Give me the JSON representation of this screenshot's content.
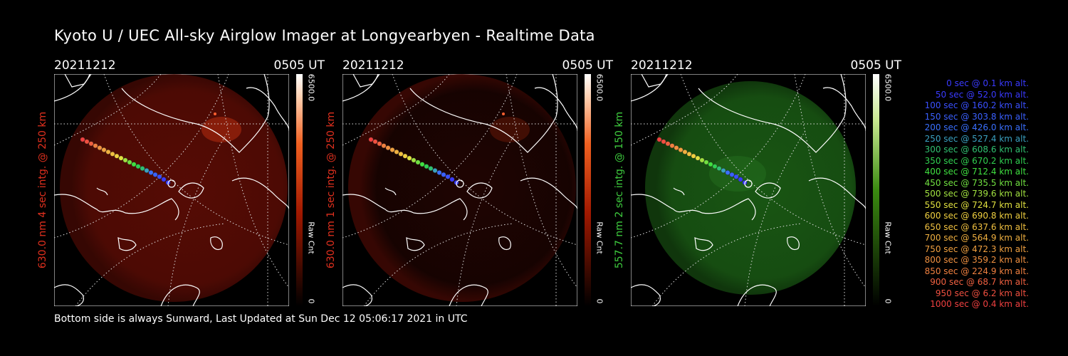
{
  "page": {
    "title": "Kyoto U / UEC All-sky Airglow Imager at Longyearbyen - Realtime Data",
    "footer": "Bottom side is always Sunward, Last Updated at Sun Dec 12 05:06:17 2021 in UTC"
  },
  "panels": [
    {
      "date": "20211212",
      "time": "0505 UT",
      "side_label": "630.0 nm 4 sec intg. @ 250 km",
      "side_color": "#e0301e",
      "cb_max": "6500.0",
      "cb_min": "0",
      "cb_title": "Raw Cnt",
      "colormap": "red"
    },
    {
      "date": "20211212",
      "time": "0505 UT",
      "side_label": "630.0 nm 1 sec intg. @ 250 km",
      "side_color": "#e0301e",
      "cb_max": "6500.0",
      "cb_min": "0",
      "cb_title": "Raw Cnt",
      "colormap": "red"
    },
    {
      "date": "20211212",
      "time": "0505 UT",
      "side_label": "557.7 nm 2 sec intg. @ 150 km",
      "side_color": "#3ecc3e",
      "cb_max": "6500.0",
      "cb_min": "0",
      "cb_title": "Raw Cnt",
      "colormap": "green"
    }
  ],
  "legend": [
    {
      "text": "0 sec @    0.1 km alt.",
      "color": "#3a3aff"
    },
    {
      "text": "50 sec @   52.0 km alt.",
      "color": "#3a3aff"
    },
    {
      "text": "100 sec @  160.2 km alt.",
      "color": "#3a50ff"
    },
    {
      "text": "150 sec @  303.8 km alt.",
      "color": "#3a60ff"
    },
    {
      "text": "200 sec @  426.0 km alt.",
      "color": "#3a70ff"
    },
    {
      "text": "250 sec @  527.4 km alt.",
      "color": "#3aa0c0"
    },
    {
      "text": "300 sec @  608.6 km alt.",
      "color": "#30c070"
    },
    {
      "text": "350 sec @  670.2 km alt.",
      "color": "#30d050"
    },
    {
      "text": "400 sec @  712.4 km alt.",
      "color": "#40e040"
    },
    {
      "text": "450 sec @  735.5 km alt.",
      "color": "#70e040"
    },
    {
      "text": "500 sec @  739.6 km alt.",
      "color": "#a0e040"
    },
    {
      "text": "550 sec @  724.7 km alt.",
      "color": "#e0e040"
    },
    {
      "text": "600 sec @  690.8 km alt.",
      "color": "#f0d040"
    },
    {
      "text": "650 sec @  637.6 km alt.",
      "color": "#f0c040"
    },
    {
      "text": "700 sec @  564.9 km alt.",
      "color": "#f0b040"
    },
    {
      "text": "750 sec @  472.3 km alt.",
      "color": "#f0a040"
    },
    {
      "text": "800 sec @  359.2 km alt.",
      "color": "#f09040"
    },
    {
      "text": "850 sec @  224.9 km alt.",
      "color": "#f08040"
    },
    {
      "text": "900 sec @   68.7 km alt.",
      "color": "#f06040"
    },
    {
      "text": "950 sec @    6.2 km alt.",
      "color": "#f05040"
    },
    {
      "text": "1000 sec @    0.4 km alt.",
      "color": "#f04040"
    }
  ]
}
